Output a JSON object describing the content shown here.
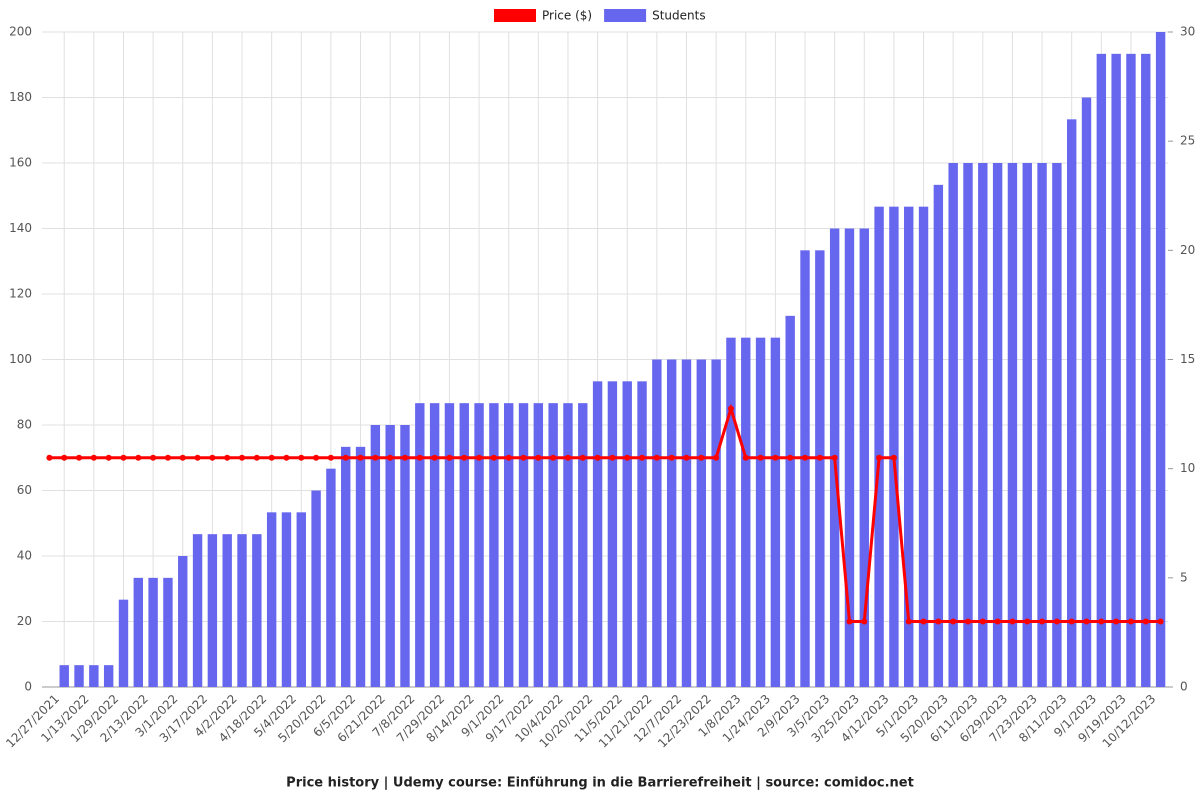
{
  "chart_data": {
    "type": "bar",
    "title": "Price history | Udemy course: Einführung in die Barrierefreiheit | source: comidoc.net",
    "categories": [
      "12/27/2021",
      null,
      "1/13/2022",
      null,
      "1/29/2022",
      null,
      "2/13/2022",
      null,
      "3/1/2022",
      null,
      "3/17/2022",
      null,
      "4/2/2022",
      null,
      "4/18/2022",
      null,
      "5/4/2022",
      null,
      "5/20/2022",
      null,
      "6/5/2022",
      null,
      "6/21/2022",
      null,
      "7/8/2022",
      null,
      "7/29/2022",
      null,
      "8/14/2022",
      null,
      "9/1/2022",
      null,
      "9/17/2022",
      null,
      "10/4/2022",
      null,
      "10/20/2022",
      null,
      "11/5/2022",
      null,
      "11/21/2022",
      null,
      "12/7/2022",
      null,
      "12/23/2022",
      null,
      "1/8/2023",
      null,
      "1/24/2023",
      null,
      "2/9/2023",
      null,
      "3/5/2023",
      null,
      "3/25/2023",
      null,
      "4/12/2023",
      null,
      "5/1/2023",
      null,
      "5/20/2023",
      null,
      "6/11/2023",
      null,
      "6/29/2023",
      null,
      "7/23/2023",
      null,
      "8/11/2023",
      null,
      "9/1/2023",
      null,
      "9/19/2023",
      null,
      "10/12/2023",
      null
    ],
    "series": [
      {
        "name": "Price ($)",
        "type": "line",
        "color": "#ff0000",
        "values": [
          69.99,
          69.99,
          69.99,
          69.99,
          69.99,
          69.99,
          69.99,
          69.99,
          69.99,
          69.99,
          69.99,
          69.99,
          69.99,
          69.99,
          69.99,
          69.99,
          69.99,
          69.99,
          69.99,
          69.99,
          69.99,
          69.99,
          69.99,
          69.99,
          69.99,
          69.99,
          69.99,
          69.99,
          69.99,
          69.99,
          69.99,
          69.99,
          69.99,
          69.99,
          69.99,
          69.99,
          69.99,
          69.99,
          69.99,
          69.99,
          69.99,
          69.99,
          69.99,
          69.99,
          69.99,
          69.99,
          84.99,
          69.99,
          69.99,
          69.99,
          69.99,
          69.99,
          69.99,
          69.99,
          19.99,
          19.99,
          69.99,
          69.99,
          19.99,
          19.99,
          19.99,
          19.99,
          19.99,
          19.99,
          19.99,
          19.99,
          19.99,
          19.99,
          19.99,
          19.99,
          19.99,
          19.99,
          19.99,
          19.99,
          19.99,
          19.99
        ]
      },
      {
        "name": "Students",
        "type": "bar",
        "axis": "y2",
        "color": "#6666ee",
        "values": [
          0,
          1,
          1,
          1,
          1,
          4,
          5,
          5,
          5,
          6,
          7,
          7,
          7,
          7,
          7,
          8,
          8,
          8,
          9,
          10,
          11,
          11,
          12,
          12,
          12,
          13,
          13,
          13,
          13,
          13,
          13,
          13,
          13,
          13,
          13,
          13,
          13,
          14,
          14,
          14,
          14,
          15,
          15,
          15,
          15,
          15,
          16,
          16,
          16,
          16,
          17,
          20,
          20,
          21,
          21,
          21,
          22,
          22,
          22,
          22,
          23,
          24,
          24,
          24,
          24,
          24,
          24,
          24,
          24,
          26,
          27,
          29,
          29,
          29,
          29,
          30
        ]
      }
    ],
    "ylim": [
      0,
      200
    ],
    "yticks": [
      0,
      20,
      40,
      60,
      80,
      100,
      120,
      140,
      160,
      180,
      200
    ],
    "y2lim": [
      0,
      30
    ],
    "y2ticks": [
      0,
      5,
      10,
      15,
      20,
      25,
      30
    ],
    "grid": true,
    "legend": "top"
  }
}
